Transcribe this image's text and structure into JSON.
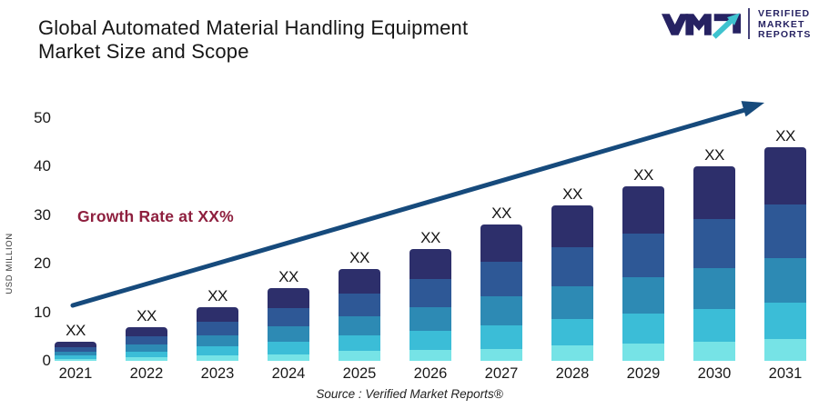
{
  "header": {
    "title_line1": "Global Automated Material Handling Equipment",
    "title_line2": "Market Size and Scope"
  },
  "logo": {
    "monogram": "VMR",
    "name_lines": [
      "VERIFIED",
      "MARKET",
      "REPORTS"
    ],
    "navy": "#262262",
    "teal": "#3fc3cf"
  },
  "chart": {
    "y_axis_label": "USD MILLION",
    "y_ticks": [
      0,
      10,
      20,
      30,
      40,
      50
    ],
    "bar_value_label": "XX",
    "growth_annotation": "Growth Rate at XX%",
    "growth_color": "#8e1f3e",
    "arrow_color": "#164a7c",
    "segment_colors_top_to_bottom": [
      "#2d2f6b",
      "#2e5896",
      "#2d8ab4",
      "#3bbdd7",
      "#76e3e6"
    ],
    "segment_fractions_top_to_bottom": [
      0.27,
      0.25,
      0.21,
      0.17,
      0.1
    ]
  },
  "chart_data": {
    "type": "bar",
    "stacked": true,
    "title": "Global Automated Material Handling Equipment Market Size and Scope",
    "categories": [
      "2021",
      "2022",
      "2023",
      "2024",
      "2025",
      "2026",
      "2027",
      "2028",
      "2029",
      "2030",
      "2031"
    ],
    "values": [
      4,
      7,
      11,
      15,
      19,
      23,
      28,
      32,
      36,
      40,
      44
    ],
    "bar_labels": [
      "XX",
      "XX",
      "XX",
      "XX",
      "XX",
      "XX",
      "XX",
      "XX",
      "XX",
      "XX",
      "XX"
    ],
    "xlabel": "",
    "ylabel": "USD MILLION",
    "ylim": [
      0,
      50
    ],
    "grid": false,
    "legend": "none",
    "annotations": [
      "Growth Rate at XX%"
    ],
    "trend_arrow": "rising diagonal arrow from lower-left to upper-right"
  },
  "footer": {
    "source": "Source :  Verified Market Reports®"
  }
}
